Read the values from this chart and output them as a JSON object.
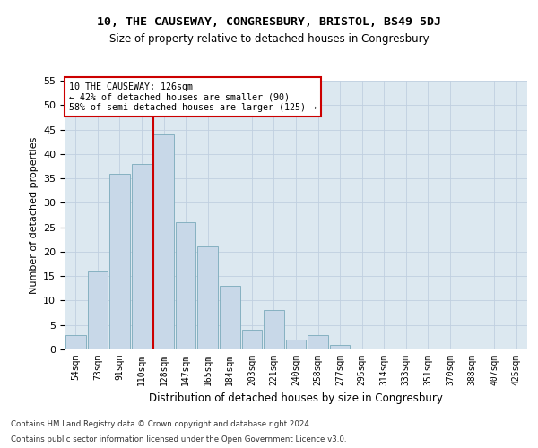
{
  "title1": "10, THE CAUSEWAY, CONGRESBURY, BRISTOL, BS49 5DJ",
  "title2": "Size of property relative to detached houses in Congresbury",
  "xlabel": "Distribution of detached houses by size in Congresbury",
  "ylabel": "Number of detached properties",
  "bar_color": "#c8d8e8",
  "bar_edge_color": "#7aaabb",
  "categories": [
    "54sqm",
    "73sqm",
    "91sqm",
    "110sqm",
    "128sqm",
    "147sqm",
    "165sqm",
    "184sqm",
    "203sqm",
    "221sqm",
    "240sqm",
    "258sqm",
    "277sqm",
    "295sqm",
    "314sqm",
    "333sqm",
    "351sqm",
    "370sqm",
    "388sqm",
    "407sqm",
    "425sqm"
  ],
  "values": [
    3,
    16,
    36,
    38,
    44,
    26,
    21,
    13,
    4,
    8,
    2,
    3,
    1,
    0,
    0,
    0,
    0,
    0,
    0,
    0,
    0
  ],
  "property_label": "10 THE CAUSEWAY: 126sqm",
  "pct_smaller": 42,
  "n_smaller": 90,
  "pct_larger": 58,
  "n_larger": 125,
  "vline_x_index": 4,
  "ylim": [
    0,
    55
  ],
  "yticks": [
    0,
    5,
    10,
    15,
    20,
    25,
    30,
    35,
    40,
    45,
    50,
    55
  ],
  "annotation_box_color": "#ffffff",
  "annotation_box_edge": "#cc0000",
  "vline_color": "#cc0000",
  "grid_color": "#c0cfe0",
  "bg_color": "#dce8f0",
  "footnote1": "Contains HM Land Registry data © Crown copyright and database right 2024.",
  "footnote2": "Contains public sector information licensed under the Open Government Licence v3.0."
}
